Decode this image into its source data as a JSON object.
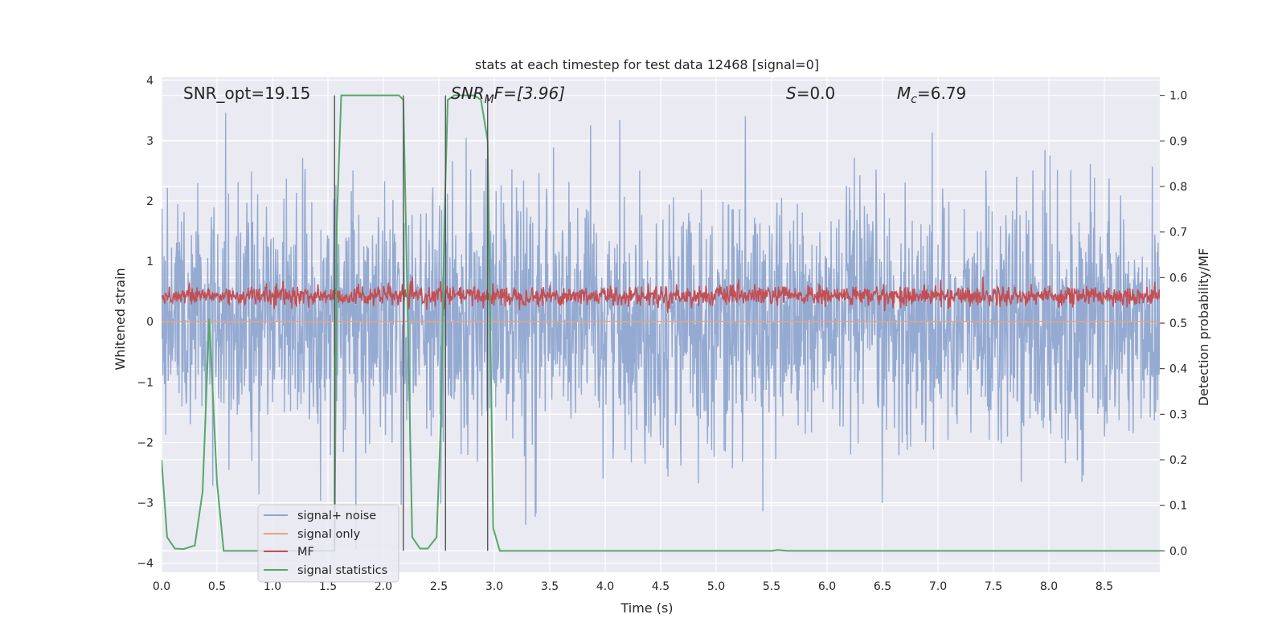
{
  "chart_data": {
    "type": "line",
    "title": "stats at each timestep for test data 12468 [signal=0]",
    "xlabel": "Time (s)",
    "ylabel_left": "Whitened strain",
    "ylabel_right": "Detection probability/MF",
    "xlim": [
      0,
      9
    ],
    "ylim_left": [
      -4.15,
      4.05
    ],
    "ylim_right": [
      -0.047,
      1.04
    ],
    "x_ticks": [
      "0.0",
      "0.5",
      "1.0",
      "1.5",
      "2.0",
      "2.5",
      "3.0",
      "3.5",
      "4.0",
      "4.5",
      "5.0",
      "5.5",
      "6.0",
      "6.5",
      "7.0",
      "7.5",
      "8.0",
      "8.5"
    ],
    "y_ticks_left": [
      "4",
      "3",
      "2",
      "1",
      "0",
      "−1",
      "−2",
      "−3",
      "−4"
    ],
    "y_ticks_right": [
      "1.0",
      "0.9",
      "0.8",
      "0.7",
      "0.6",
      "0.5",
      "0.4",
      "0.3",
      "0.2",
      "0.1",
      "0.0"
    ],
    "grid": true,
    "legend_position": "lower-left",
    "annotations": {
      "snr_opt": "SNR_opt=19.15",
      "snr_mf_base": "SNR",
      "snr_mf_sub": "M",
      "snr_mf_rest": "F=[3.96]",
      "s_var": "S",
      "s_rest": "=0.0",
      "mc_var": "M",
      "mc_sub": "c",
      "mc_rest": "=6.79"
    },
    "vertical_markers_s": [
      1.56,
      2.18,
      2.56,
      2.94
    ],
    "series": [
      {
        "name": "signal+ noise",
        "color": "#8fa6cf",
        "axis": "left",
        "description_stats": {
          "mean": 0.0,
          "std": 1.0,
          "min": -4.0,
          "max": 3.65
        }
      },
      {
        "name": "signal only",
        "color": "#e8a284",
        "axis": "left",
        "values_note": 0
      },
      {
        "name": "MF",
        "color": "#c44e52",
        "axis": "right",
        "description_stats": {
          "min": 0.52,
          "max": 0.61,
          "typical_center": 0.56
        }
      },
      {
        "name": "signal statistics",
        "color": "#55a868",
        "axis": "right",
        "x": [
          0.0,
          0.05,
          0.12,
          0.2,
          0.3,
          0.37,
          0.43,
          0.5,
          0.56,
          0.7,
          1.0,
          1.3,
          1.5,
          1.56,
          1.58,
          1.62,
          2.0,
          2.14,
          2.18,
          2.26,
          2.33,
          2.4,
          2.48,
          2.52,
          2.55,
          2.58,
          2.64,
          2.73,
          2.82,
          2.88,
          2.94,
          2.99,
          3.05,
          3.5,
          4.5,
          5.0,
          5.5,
          5.55,
          5.65,
          6.0,
          7.0,
          7.5,
          8.0,
          8.5,
          9.0
        ],
        "y": [
          0.2,
          0.03,
          0.005,
          0.004,
          0.012,
          0.13,
          0.51,
          0.15,
          0.0,
          0.0,
          0.0,
          0.0,
          0.0,
          0.0,
          0.72,
          1.0,
          1.0,
          1.0,
          0.99,
          0.03,
          0.005,
          0.005,
          0.03,
          0.3,
          0.72,
          0.99,
          1.0,
          1.0,
          1.0,
          0.99,
          0.9,
          0.05,
          0.0,
          0.0,
          0.0,
          0.0,
          0.0,
          0.002,
          0.0,
          0.0,
          0.0,
          0.0,
          0.0,
          0.0,
          0.0
        ]
      }
    ]
  },
  "colors": {
    "plot_background": "#eaeaf2",
    "grid": "#ffffff",
    "vertical_marker": "#555555"
  }
}
